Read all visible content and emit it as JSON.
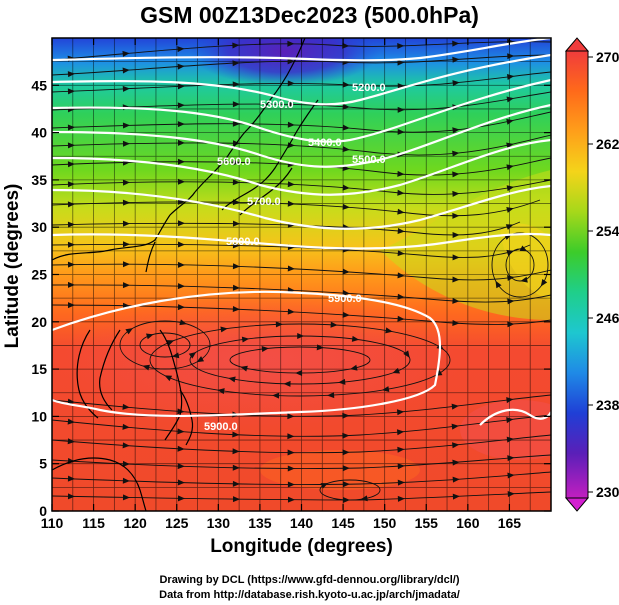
{
  "title": "GSM 00Z13Dec2023 (500.0hPa)",
  "x_axis": {
    "label": "Longitude (degrees)",
    "ticks": [
      "110",
      "115",
      "120",
      "125",
      "130",
      "135",
      "140",
      "145",
      "150",
      "155",
      "160",
      "165"
    ],
    "range": [
      110,
      170
    ]
  },
  "y_axis": {
    "label": "Latitude  (degrees)",
    "ticks": [
      "0",
      "5",
      "10",
      "15",
      "20",
      "25",
      "30",
      "35",
      "40",
      "45"
    ],
    "range": [
      0,
      50
    ]
  },
  "colorbar": {
    "tick_labels": [
      "270",
      "262",
      "254",
      "246",
      "238",
      "230"
    ],
    "colors": [
      "#f03c3c",
      "#ff6a1a",
      "#ff9f1a",
      "#f4d41a",
      "#a6d81a",
      "#3ccc2a",
      "#1fcf8a",
      "#1ec7cf",
      "#1f8ae6",
      "#1f3fd6",
      "#5a1fb8",
      "#c21fc0"
    ]
  },
  "contour_labels": {
    "c5200": "5200.0",
    "c5300": "5300.0",
    "c5400": "5400.0",
    "c5500": "5500.0",
    "c5600": "5600.0",
    "c5700": "5700.0",
    "c5800": "5800.0",
    "c5900a": "5900.0",
    "c5900b": "5900.0"
  },
  "credits": {
    "line1": "Drawing by DCL (https://www.gfd-dennou.org/library/dcl/)",
    "line2": "Data from http://database.rish.kyoto-u.ac.jp/arch/jmadata/"
  }
}
